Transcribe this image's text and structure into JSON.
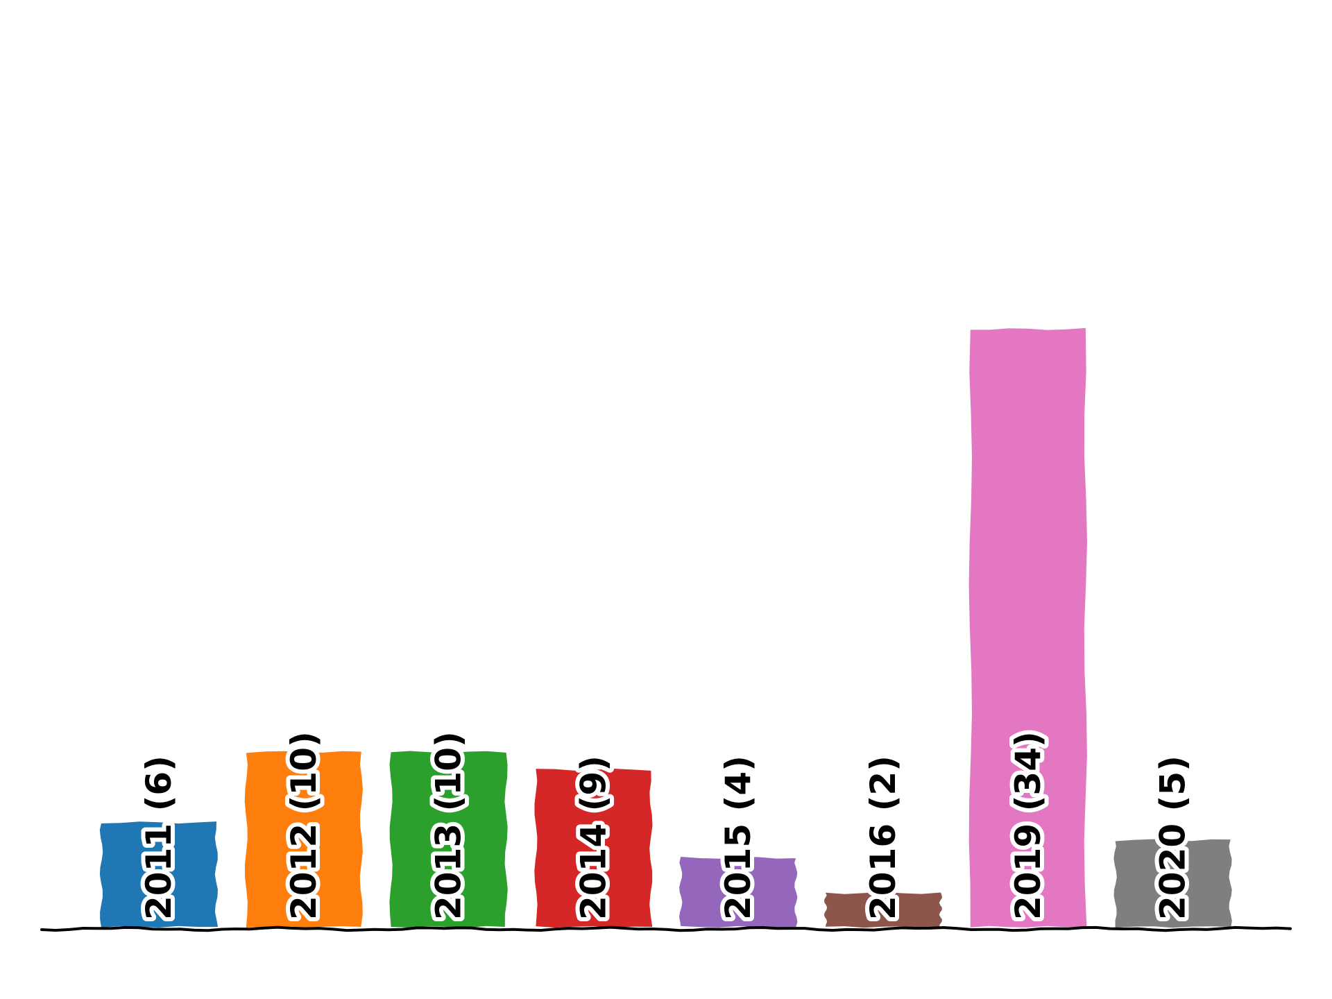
{
  "chart_data": {
    "type": "bar",
    "title": "",
    "xlabel": "",
    "ylabel": "",
    "ylim": [
      0,
      35
    ],
    "grid": false,
    "axes_visible": false,
    "categories": [
      "2011",
      "2012",
      "2013",
      "2014",
      "2015",
      "2016",
      "2019",
      "2020"
    ],
    "values": [
      6,
      10,
      10,
      9,
      4,
      2,
      34,
      5
    ],
    "labels": [
      "2011 (6)",
      "2012 (10)",
      "2013 (10)",
      "2014 (9)",
      "2015 (4)",
      "2016 (2)",
      "2019 (34)",
      "2020 (5)"
    ],
    "label_orientation": "vertical",
    "colors": [
      "#1f77b4",
      "#ff7f0e",
      "#2ca02c",
      "#d62728",
      "#9467bd",
      "#8c564b",
      "#e377c2",
      "#7f7f7f"
    ]
  }
}
